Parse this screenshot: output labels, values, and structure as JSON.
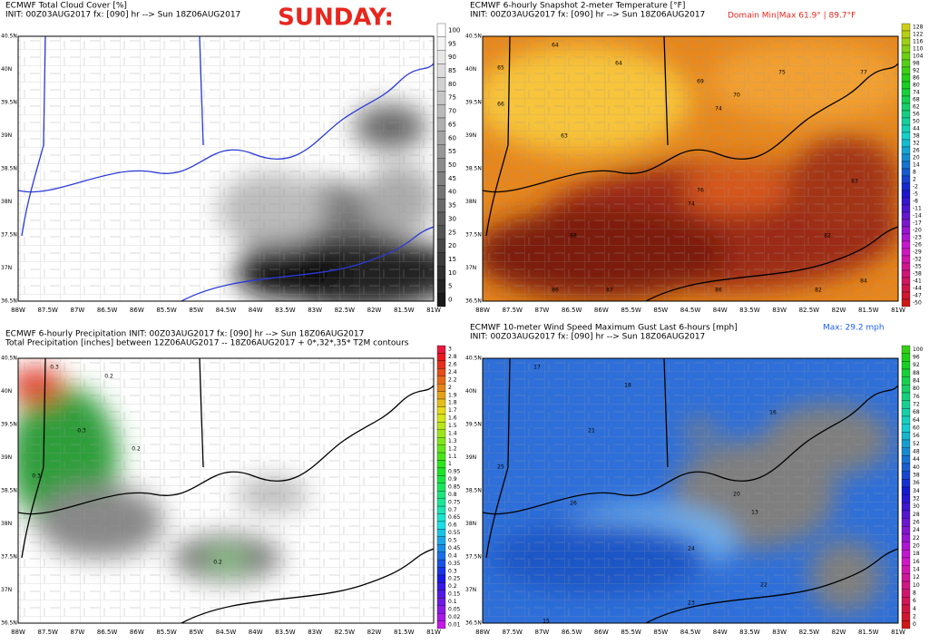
{
  "headline": "SUNDAY:",
  "map_axes": {
    "lon": [
      "88W",
      "87.5W",
      "87W",
      "86.5W",
      "86W",
      "85.5W",
      "85W",
      "84.5W",
      "84W",
      "83.5W",
      "83W",
      "82.5W",
      "82W",
      "81.5W",
      "81W"
    ],
    "lat": [
      "40.5N",
      "40N",
      "39.5N",
      "39N",
      "38.5N",
      "38N",
      "37.5N",
      "37N",
      "36.5N"
    ]
  },
  "panels": [
    {
      "title": "ECMWF Total Cloud Cover [%]",
      "init": "INIT: 00Z03AUG2017 fx: [090] hr --> Sun 18Z06AUG2017",
      "colorbar": [
        "100",
        "95",
        "90",
        "85",
        "80",
        "75",
        "70",
        "65",
        "60",
        "55",
        "50",
        "45",
        "40",
        "35",
        "30",
        "25",
        "20",
        "15",
        "10",
        "5",
        "0"
      ],
      "labels": []
    },
    {
      "title": "ECMWF 6-hourly Snapshot 2-meter Temperature [°F]",
      "init": "INIT: 00Z03AUG2017 fx: [090] hr --> Sun 18Z06AUG2017",
      "note": "Domain Min|Max 61.9° | 89.7°F",
      "colorbar": [
        "128",
        "122",
        "116",
        "110",
        "104",
        "98",
        "92",
        "86",
        "80",
        "74",
        "68",
        "62",
        "56",
        "50",
        "44",
        "38",
        "32",
        "26",
        "20",
        "14",
        "8",
        "2",
        "-2",
        "-5",
        "-8",
        "-11",
        "-14",
        "-17",
        "-20",
        "-23",
        "-26",
        "-29",
        "-32",
        "-35",
        "-38",
        "-41",
        "-44",
        "-47",
        "-50"
      ],
      "labels": [
        "64",
        "64",
        "65",
        "66",
        "63",
        "69",
        "74",
        "75",
        "77",
        "70",
        "76",
        "74",
        "83",
        "82",
        "88",
        "86",
        "87",
        "86",
        "82",
        "84"
      ]
    },
    {
      "title": "ECMWF 6-hourly Precipitation INIT: 00Z03AUG2017 fx: [090] hr --> Sun 18Z06AUG2017",
      "init": "Total Precipitation [inches] between 12Z06AUG2017 -- 18Z06AUG2017 + 0*,32*,35* T2M contours",
      "colorbar": [
        "3",
        "2.8",
        "2.6",
        "2.4",
        "2.2",
        "2",
        "1.9",
        "1.8",
        "1.7",
        "1.6",
        "1.5",
        "1.4",
        "1.3",
        "1.2",
        "1.1",
        "1",
        "0.95",
        "0.9",
        "0.85",
        "0.8",
        "0.75",
        "0.7",
        "0.65",
        "0.6",
        "0.55",
        "0.5",
        "0.45",
        "0.4",
        "0.35",
        "0.3",
        "0.25",
        "0.2",
        "0.15",
        "0.1",
        "0.05",
        "0.02",
        "0.01"
      ],
      "labels": [
        "0.3",
        "0.2",
        "0.3",
        "0.2",
        "0.3",
        "0.2"
      ]
    },
    {
      "title": "ECMWF 10-meter Wind Speed Maximum Gust Last 6-hours [mph]",
      "init": "INIT: 00Z03AUG2017 fx: [090] hr --> Sun 18Z06AUG2017",
      "note": "Max: 29.2 mph",
      "colorbar": [
        "100",
        "96",
        "92",
        "88",
        "84",
        "80",
        "76",
        "72",
        "68",
        "64",
        "60",
        "56",
        "52",
        "48",
        "44",
        "40",
        "38",
        "36",
        "34",
        "32",
        "30",
        "28",
        "26",
        "24",
        "22",
        "20",
        "18",
        "16",
        "14",
        "12",
        "10",
        "8",
        "6",
        "4",
        "2",
        "0"
      ],
      "labels": [
        "17",
        "18",
        "21",
        "25",
        "26",
        "20",
        "13",
        "24",
        "23",
        "22",
        "15",
        "16"
      ]
    }
  ]
}
